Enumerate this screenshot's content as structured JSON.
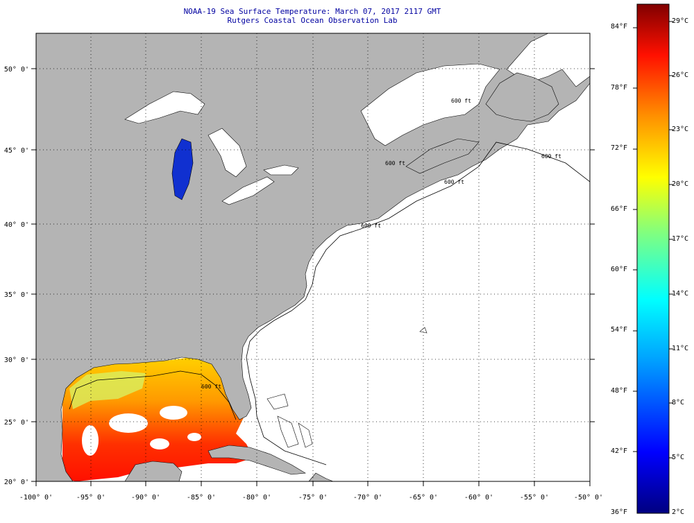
{
  "title": {
    "line1": "NOAA-19 Sea Surface Temperature:  March 07, 2017 2117 GMT",
    "line2": "Rutgers Coastal Ocean Observation Lab"
  },
  "map": {
    "lon_labels": [
      "-100° 0'",
      "-95° 0'",
      "-90° 0'",
      "-85° 0'",
      "-80° 0'",
      "-75° 0'",
      "-70° 0'",
      "-65° 0'",
      "-60° 0'",
      "-55° 0'",
      "-50° 0'"
    ],
    "lat_labels": [
      "50° 0'",
      "45° 0'",
      "40° 0'",
      "35° 0'",
      "30° 0'",
      "25° 0'",
      "20° 0'"
    ],
    "contour_labels": [
      "600 ft",
      "600 ft",
      "600 ft",
      "600 ft",
      "600 ft",
      "600 ft"
    ],
    "colors": {
      "land": "#b4b4b4",
      "ocean_no_data": "#ffffff",
      "grid": "#000000"
    }
  },
  "colorbar": {
    "fahrenheit": [
      "84°F",
      "78°F",
      "72°F",
      "66°F",
      "60°F",
      "54°F",
      "48°F",
      "42°F",
      "36°F"
    ],
    "celsius": [
      "29°C",
      "26°C",
      "23°C",
      "20°C",
      "17°C",
      "14°C",
      "11°C",
      "8°C",
      "5°C",
      "2°C"
    ]
  }
}
